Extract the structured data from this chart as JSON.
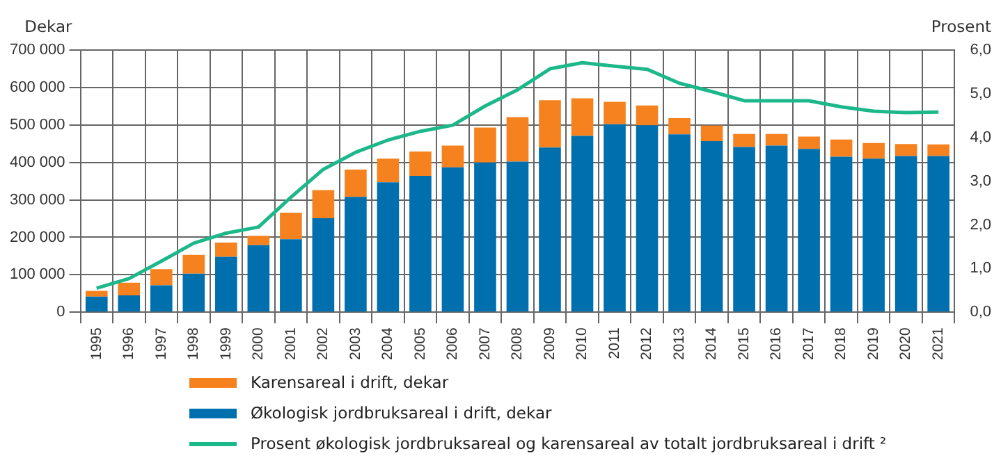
{
  "chart_data": {
    "type": "bar",
    "stacked": true,
    "ylabel": "Dekar",
    "y2label": "Prosent",
    "grid": true,
    "legend": "bottom",
    "categories": [
      "1995",
      "1996",
      "1997",
      "1998",
      "1999",
      "2000",
      "2001",
      "2002",
      "2003",
      "2004",
      "2005",
      "2006",
      "2007",
      "2008",
      "2009",
      "2010",
      "2011",
      "2012",
      "2013",
      "2014",
      "2015",
      "2016",
      "2017",
      "2018",
      "2019",
      "2020",
      "2021"
    ],
    "series": [
      {
        "name": "Økologisk jordbruksareal i drift, dekar",
        "color": "#006fad",
        "values": [
          42000,
          45000,
          72000,
          103000,
          148000,
          179000,
          195000,
          251000,
          308000,
          347000,
          364000,
          387000,
          400000,
          402000,
          440000,
          471000,
          502000,
          499000,
          475000,
          457000,
          441000,
          445000,
          436000,
          415000,
          410000,
          417000,
          417000
        ]
      },
      {
        "name": "Karensareal i drift, dekar",
        "color": "#f5821f",
        "values": [
          15000,
          34000,
          43000,
          50000,
          38000,
          25000,
          71000,
          75000,
          73000,
          63000,
          65000,
          58000,
          93000,
          119000,
          126000,
          100000,
          60000,
          53000,
          43000,
          41000,
          35000,
          31000,
          33000,
          46000,
          42000,
          32000,
          31000
        ]
      },
      {
        "name": "Prosent økologisk jordbruksareal og karensareal av totalt jordbruksareal i drift ²",
        "type": "line",
        "axis": "y2",
        "color": "#1db88a",
        "values": [
          0.55,
          0.77,
          1.17,
          1.58,
          1.81,
          1.95,
          2.63,
          3.27,
          3.66,
          3.94,
          4.14,
          4.28,
          4.72,
          5.09,
          5.57,
          5.71,
          5.63,
          5.56,
          5.24,
          5.05,
          4.84,
          4.84,
          4.84,
          4.7,
          4.6,
          4.57,
          4.58
        ]
      }
    ],
    "ylim": [
      0,
      700000
    ],
    "yticks": [
      {
        "value": 0,
        "label": "0"
      },
      {
        "value": 100000,
        "label": "100 000"
      },
      {
        "value": 200000,
        "label": "200 000"
      },
      {
        "value": 300000,
        "label": "300 000"
      },
      {
        "value": 400000,
        "label": "400 000"
      },
      {
        "value": 500000,
        "label": "500 000"
      },
      {
        "value": 600000,
        "label": "600 000"
      },
      {
        "value": 700000,
        "label": "700 000"
      }
    ],
    "y2lim": [
      0,
      6
    ],
    "y2ticks": [
      {
        "value": 0,
        "label": "0,0"
      },
      {
        "value": 1,
        "label": "1,0"
      },
      {
        "value": 2,
        "label": "2,0"
      },
      {
        "value": 3,
        "label": "3,0"
      },
      {
        "value": 4,
        "label": "4,0"
      },
      {
        "value": 5,
        "label": "5,0"
      },
      {
        "value": 6,
        "label": "6,0"
      }
    ]
  }
}
